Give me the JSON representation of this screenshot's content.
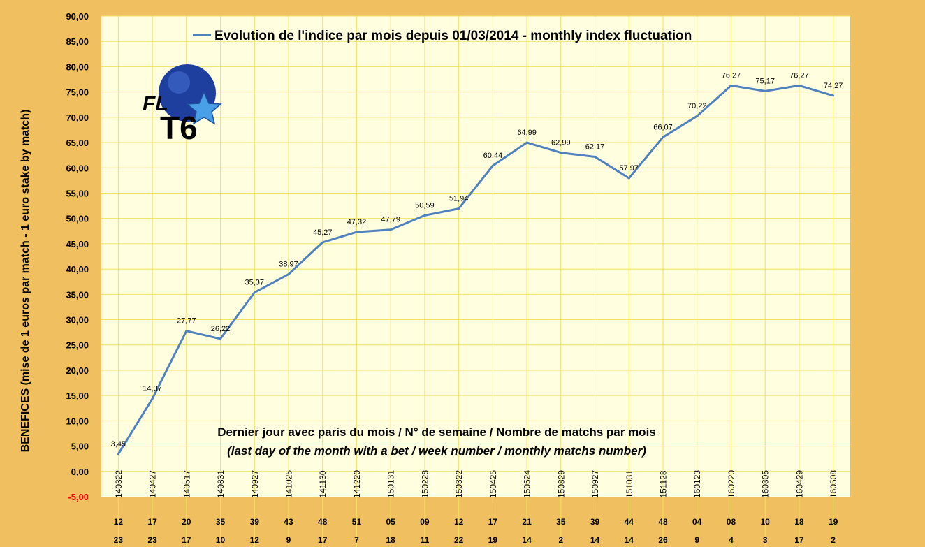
{
  "chart_data": {
    "type": "line",
    "title": "Evolution de l'indice par mois depuis 01/03/2014 - monthly index fluctuation",
    "ylabel": "BENEFICES (mise de 1 euros par match - 1 euro stake by match)",
    "annotation": {
      "line1": "Dernier jour avec paris du mois / N° de semaine / Nombre de matchs par mois",
      "line2": "(last day of the month with a bet / week number / monthly matchs number)"
    },
    "logo": {
      "text1": "FL",
      "text2": "T6",
      "colors": {
        "ball": "#1f3f9e",
        "star": "#4aa0e6",
        "text": "#000000"
      }
    },
    "ylim": [
      -5,
      90
    ],
    "yticks": [
      "-5,00",
      "0,00",
      "5,00",
      "10,00",
      "15,00",
      "20,00",
      "25,00",
      "30,00",
      "35,00",
      "40,00",
      "45,00",
      "50,00",
      "55,00",
      "60,00",
      "65,00",
      "70,00",
      "75,00",
      "80,00",
      "85,00",
      "90,00"
    ],
    "grid": true,
    "legend_position": "top",
    "colors": {
      "line": "#4f81bd",
      "plot_bg": "#ffffe0",
      "outer_bg": "#f0c060",
      "grid": "#f2e060",
      "negative_band": "#f0c060",
      "ytick_negative": "#ff0000"
    },
    "x": [
      "140322",
      "140427",
      "140517",
      "140831",
      "140927",
      "141025",
      "141130",
      "141220",
      "150131",
      "150228",
      "150322",
      "150425",
      "150524",
      "150829",
      "150927",
      "151031",
      "151128",
      "160123",
      "160220",
      "160305",
      "160429",
      "160508"
    ],
    "week_numbers": [
      "12",
      "17",
      "20",
      "35",
      "39",
      "43",
      "48",
      "51",
      "05",
      "09",
      "12",
      "17",
      "21",
      "35",
      "39",
      "44",
      "48",
      "04",
      "08",
      "10",
      "18",
      "19"
    ],
    "match_counts": [
      "23",
      "23",
      "17",
      "10",
      "12",
      "9",
      "17",
      "7",
      "18",
      "11",
      "22",
      "19",
      "14",
      "2",
      "14",
      "14",
      "26",
      "9",
      "4",
      "3",
      "17",
      "2"
    ],
    "series": [
      {
        "name": "Evolution de l'indice par mois depuis 01/03/2014 - monthly index fluctuation",
        "values": [
          3.45,
          14.37,
          27.77,
          26.22,
          35.37,
          38.97,
          45.27,
          47.32,
          47.79,
          50.59,
          51.94,
          60.44,
          64.99,
          62.99,
          62.17,
          57.97,
          66.07,
          70.22,
          76.27,
          75.17,
          76.27,
          74.27
        ],
        "labels": [
          "3,45",
          "14,37",
          "27,77",
          "26,22",
          "35,37",
          "38,97",
          "45,27",
          "47,32",
          "47,79",
          "50,59",
          "51,94",
          "60,44",
          "64,99",
          "62,99",
          "62,17",
          "57,97",
          "66,07",
          "70,22",
          "76,27",
          "75,17",
          "76,27",
          "74,27"
        ]
      }
    ]
  }
}
